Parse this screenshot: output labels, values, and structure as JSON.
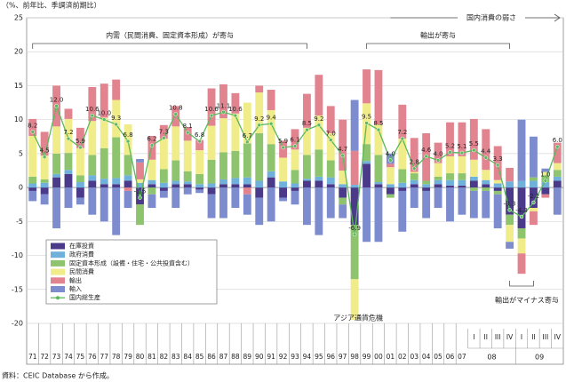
{
  "chart_data": {
    "type": "stacked-bar-line",
    "y_label": "（%、前年比、季調済前期比）",
    "source": "資料：CEIC Database から作成。",
    "categories": [
      "71",
      "72",
      "73",
      "74",
      "75",
      "76",
      "77",
      "78",
      "79",
      "80",
      "81",
      "82",
      "83",
      "84",
      "85",
      "86",
      "87",
      "88",
      "89",
      "90",
      "91",
      "92",
      "93",
      "94",
      "95",
      "96",
      "97",
      "98",
      "99",
      "00",
      "01",
      "02",
      "03",
      "04",
      "05",
      "06",
      "07",
      "I",
      "II",
      "III",
      "IV",
      "I",
      "II",
      "III",
      "IV"
    ],
    "category_groups": [
      "08",
      "09"
    ],
    "ylim": [
      -20,
      25
    ],
    "yticks": [
      -20,
      -15,
      -10,
      -5,
      0,
      5,
      10,
      15,
      20,
      25
    ],
    "grid": true,
    "legend": "lower-left",
    "series": [
      {
        "name": "在庫投資",
        "color": "#4b3a8a",
        "values": [
          -0.5,
          -1.0,
          1.5,
          2.0,
          -1.5,
          1.0,
          0.5,
          0.5,
          1.0,
          -2.5,
          0.5,
          -0.5,
          0.5,
          0.5,
          -0.3,
          -1.0,
          0.5,
          0.5,
          0.5,
          -1.5,
          1.5,
          -1.5,
          -0.5,
          1.0,
          1.0,
          0.5,
          -1.5,
          -5.5,
          3.5,
          0.5,
          -1.0,
          -0.5,
          0.5,
          -0.5,
          0.5,
          0.3,
          0.3,
          1.0,
          0.5,
          -0.5,
          -4.0,
          -6.0,
          -3.0,
          -1.0,
          1.0
        ]
      },
      {
        "name": "政府消費",
        "color": "#6fb1da",
        "values": [
          0.6,
          0.7,
          0.5,
          0.6,
          0.8,
          0.8,
          0.8,
          0.9,
          0.8,
          0.7,
          0.6,
          0.7,
          0.5,
          0.4,
          0.5,
          0.6,
          0.7,
          0.9,
          1.0,
          1.0,
          0.9,
          0.9,
          0.6,
          0.3,
          0.6,
          1.0,
          0.5,
          0.4,
          0.4,
          0.3,
          0.5,
          0.7,
          0.6,
          0.5,
          0.6,
          0.8,
          0.8,
          0.6,
          0.6,
          0.6,
          0.9,
          1.0,
          1.0,
          0.8,
          0.6
        ]
      },
      {
        "name": "固定資本形成（設備・住宅・公共投資含む）",
        "color": "#8ec46d",
        "values": [
          1.0,
          0.5,
          3.0,
          2.5,
          1.0,
          3.0,
          4.5,
          6.0,
          3.0,
          -3.0,
          -1.0,
          2.0,
          3.0,
          1.5,
          1.5,
          3.5,
          4.0,
          4.0,
          5.0,
          7.0,
          4.0,
          0.0,
          2.0,
          3.5,
          4.0,
          2.5,
          -1.0,
          -8.0,
          2.5,
          4.0,
          -0.5,
          2.0,
          1.0,
          0.5,
          0.5,
          1.0,
          1.0,
          -0.5,
          -0.5,
          -0.5,
          -1.5,
          -1.5,
          0.5,
          1.0,
          1.0
        ]
      },
      {
        "name": "民間消費",
        "color": "#f0ec8a",
        "values": [
          6.0,
          3.5,
          4.0,
          5.0,
          4.0,
          5.0,
          4.5,
          5.5,
          4.5,
          0.5,
          3.0,
          4.5,
          5.0,
          4.5,
          3.5,
          5.0,
          5.0,
          5.5,
          6.0,
          6.0,
          5.0,
          3.5,
          3.0,
          4.0,
          5.0,
          4.0,
          2.0,
          -6.0,
          6.0,
          4.5,
          2.5,
          4.5,
          0.2,
          0.0,
          2.0,
          2.5,
          2.5,
          2.5,
          1.5,
          0.5,
          -2.5,
          -2.2,
          -0.5,
          0.5,
          1.0
        ]
      },
      {
        "name": "輸出",
        "color": "#e1848f",
        "values": [
          2.5,
          3.5,
          6.0,
          1.5,
          3.0,
          5.0,
          5.0,
          3.0,
          -0.5,
          2.5,
          3.5,
          2.0,
          3.0,
          2.0,
          1.5,
          5.5,
          5.0,
          3.0,
          -1.0,
          1.0,
          3.0,
          2.5,
          3.0,
          5.0,
          6.0,
          4.0,
          7.5,
          5.0,
          5.0,
          8.0,
          0.5,
          5.0,
          5.0,
          7.0,
          3.0,
          5.0,
          5.0,
          6.0,
          6.0,
          5.0,
          2.0,
          -3.0,
          -2.0,
          -0.5,
          3.0
        ]
      },
      {
        "name": "輸入",
        "color": "#7c8cce",
        "values": [
          -1.5,
          -1.5,
          -6.0,
          -3.0,
          -1.0,
          -4.0,
          -5.0,
          -7.0,
          -2.5,
          0.5,
          -2.0,
          -1.0,
          -3.0,
          -1.0,
          -0.5,
          -3.5,
          -4.5,
          -3.0,
          -3.0,
          -4.0,
          -5.0,
          -0.5,
          -2.0,
          -5.5,
          -7.0,
          -4.5,
          -2.0,
          7.5,
          -8.0,
          -8.0,
          1.5,
          -6.0,
          -3.0,
          -4.0,
          -3.0,
          -5.0,
          -4.0,
          -4.0,
          -4.0,
          -5.0,
          -1.0,
          9.0,
          6.0,
          0.5,
          -4.0
        ]
      },
      {
        "name": "国内総生産",
        "color": "#5cb85c",
        "kind": "line",
        "values": [
          8.2,
          4.5,
          12.0,
          7.2,
          5.9,
          10.6,
          10.0,
          9.3,
          6.8,
          -1.5,
          6.2,
          7.3,
          10.8,
          8.1,
          6.8,
          10.6,
          11.1,
          10.6,
          6.7,
          9.2,
          9.4,
          5.9,
          6.1,
          8.5,
          9.2,
          7.0,
          4.7,
          -6.9,
          9.5,
          8.5,
          4.0,
          7.2,
          2.8,
          4.6,
          4.0,
          5.2,
          5.1,
          5.5,
          4.4,
          3.3,
          -3.3,
          -4.3,
          -2.2,
          1.0,
          6.0
        ],
        "value_labels": [
          "8.2",
          "4.5",
          "12.0",
          "7.2",
          "5.9",
          "10.6",
          "10.0",
          "9.3",
          "6.8",
          "-1.5",
          "6.2",
          "7.3",
          "10.8",
          "8.1",
          "6.8",
          "10.6",
          "11.1",
          "10.6",
          "6.7",
          "9.2",
          "9.4",
          "5.9",
          "6.1",
          "8.5",
          "9.2",
          "7.0",
          "4.7",
          "-6.9",
          "9.5",
          "8.5",
          "4.0",
          "7.2",
          "2.8",
          "4.6",
          "4.0",
          "5.2",
          "5.1",
          "5.5",
          "4.4",
          "3.3",
          "-3.3",
          "-4.3",
          "-2.2",
          "1.0",
          "6.0"
        ]
      }
    ],
    "annotations": [
      "内需（民間消費、固定資本形成）が寄与",
      "輸出が寄与",
      "国内消費の弱さ",
      "アジア通貨危機",
      "輸出がマイナス寄与"
    ]
  }
}
